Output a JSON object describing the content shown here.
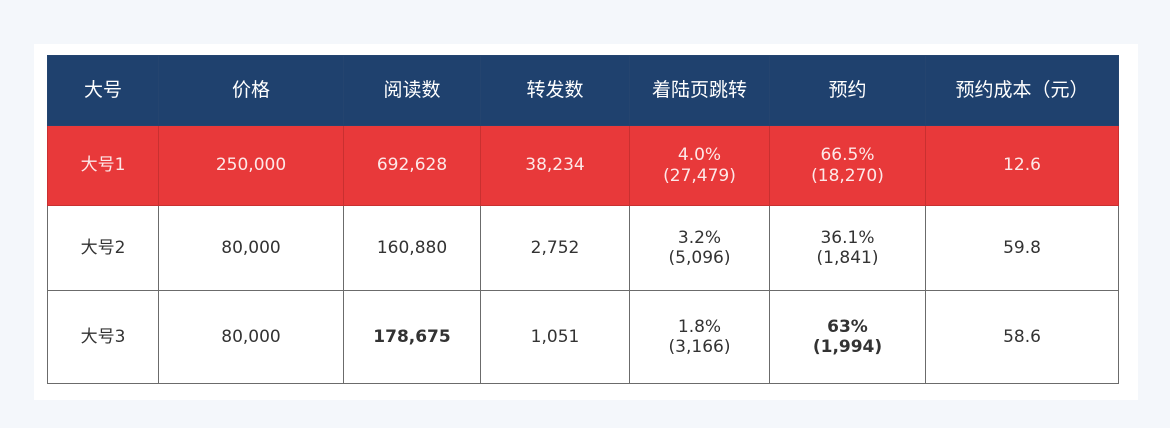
{
  "table": {
    "headers": [
      "大号",
      "价格",
      "阅读数",
      "转发数",
      "着陆页跳转",
      "预约",
      "预约成本（元）"
    ],
    "rows": [
      {
        "highlight": true,
        "cells": [
          "大号1",
          "250,000",
          "692,628",
          "38,234",
          [
            "4.0%",
            "(27,479)"
          ],
          [
            "66.5%",
            "(18,270)"
          ],
          "12.6"
        ]
      },
      {
        "highlight": false,
        "cells": [
          "大号2",
          "80,000",
          "160,880",
          "2,752",
          [
            "3.2%",
            "(5,096)"
          ],
          [
            "36.1%",
            "(1,841)"
          ],
          "59.8"
        ]
      },
      {
        "highlight": false,
        "cells": [
          "大号3",
          "80,000",
          "178,675",
          "1,051",
          [
            "1.8%",
            "(3,166)"
          ],
          [
            "63%",
            "(1,994)"
          ],
          "58.6"
        ]
      }
    ]
  },
  "colors": {
    "header_bg": "#1f416e",
    "highlight_bg": "#e8393a",
    "page_bg": "#f4f7fb"
  }
}
